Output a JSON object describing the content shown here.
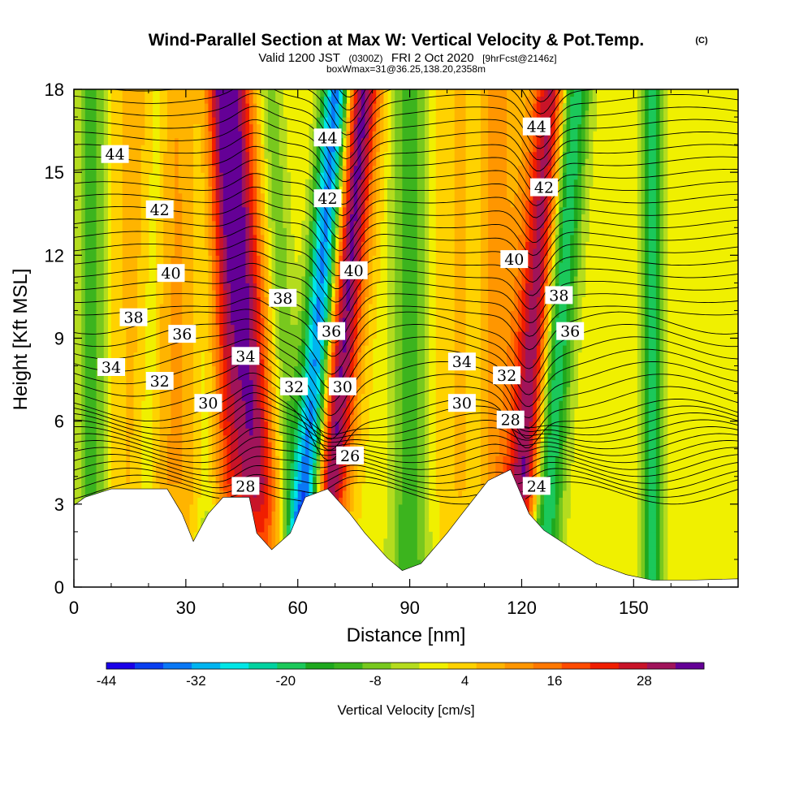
{
  "title": "Wind-Parallel Section at Max W: Vertical Velocity & Pot.Temp.",
  "copyright": "(C)",
  "subtitle": {
    "valid_prefix": "Valid 1200 JST",
    "utc": "(0300Z)",
    "date": "FRI 2 Oct 2020",
    "forecast": "[9hrFcst@2146z]"
  },
  "subtitle2": "boxWmax=31@36.25,138.20,2358m",
  "colors": {
    "scale": [
      "#1a00e8",
      "#0a3ff0",
      "#0a78f5",
      "#00b4f0",
      "#00e6e6",
      "#00d2a0",
      "#1bc85a",
      "#1ea81e",
      "#3cb41e",
      "#78c81e",
      "#b4dc1e",
      "#f0f000",
      "#ffd200",
      "#ffb400",
      "#ff9600",
      "#ff7800",
      "#ff4b00",
      "#f01e00",
      "#c81428",
      "#a0145a",
      "#640096"
    ],
    "terrain": "#ffffff",
    "contour": "#000000"
  },
  "chart_data": {
    "type": "heatmap",
    "xlabel": "Distance [nm]",
    "ylabel": "Height [Kft MSL]",
    "xlim": [
      0,
      178
    ],
    "ylim": [
      0,
      18
    ],
    "xticks": [
      "0",
      "30",
      "60",
      "90",
      "120",
      "150"
    ],
    "yticks": [
      "0",
      "3",
      "6",
      "9",
      "12",
      "15",
      "18"
    ],
    "colorbar": {
      "label": "Vertical Velocity [cm/s]",
      "range": [
        -44,
        36
      ],
      "ticks": [
        "-44",
        "-32",
        "-20",
        "-8",
        "4",
        "16",
        "28"
      ]
    },
    "terrain_kft": [
      [
        0,
        2.95
      ],
      [
        3,
        3.25
      ],
      [
        10,
        3.55
      ],
      [
        25,
        3.55
      ],
      [
        29,
        2.65
      ],
      [
        32,
        1.65
      ],
      [
        36,
        2.65
      ],
      [
        40,
        3.25
      ],
      [
        47,
        3.25
      ],
      [
        49,
        1.95
      ],
      [
        53,
        1.35
      ],
      [
        58,
        1.95
      ],
      [
        62,
        3.25
      ],
      [
        68,
        3.55
      ],
      [
        74,
        2.65
      ],
      [
        78,
        1.95
      ],
      [
        84,
        1.05
      ],
      [
        88,
        0.6
      ],
      [
        93,
        0.85
      ],
      [
        100,
        1.95
      ],
      [
        104,
        2.65
      ],
      [
        111,
        3.85
      ],
      [
        117,
        4.25
      ],
      [
        122,
        2.65
      ],
      [
        126,
        2.05
      ],
      [
        134,
        1.35
      ],
      [
        140,
        0.85
      ],
      [
        148,
        0.45
      ],
      [
        155,
        0.25
      ],
      [
        165,
        0.25
      ],
      [
        178,
        0.3
      ]
    ],
    "updrafts": [
      {
        "x": 30,
        "slope": 0.0,
        "w": 22,
        "amp": 10
      },
      {
        "x": 48,
        "slope": -0.5,
        "w": 6,
        "amp": 26
      },
      {
        "x": 70,
        "slope": 0.6,
        "w": 5,
        "amp": 35
      },
      {
        "x": 122,
        "slope": 0.5,
        "w": 5,
        "amp": 30
      },
      {
        "x": 112,
        "slope": 0.0,
        "w": 9,
        "amp": 10
      },
      {
        "x": 40,
        "slope": -0.2,
        "w": 5,
        "amp": 12
      },
      {
        "x": 100,
        "slope": 0.0,
        "w": 14,
        "amp": 3
      }
    ],
    "downdrafts": [
      {
        "x": 5,
        "slope": 0.0,
        "w": 4,
        "amp": 14
      },
      {
        "x": 20,
        "slope": 0.2,
        "w": 3,
        "amp": 8
      },
      {
        "x": 36,
        "slope": -0.1,
        "w": 4,
        "amp": 14
      },
      {
        "x": 57,
        "slope": -0.4,
        "w": 4,
        "amp": 12
      },
      {
        "x": 64,
        "slope": 0.55,
        "w": 4,
        "amp": 40
      },
      {
        "x": 128,
        "slope": 0.5,
        "w": 4,
        "amp": 26
      },
      {
        "x": 90,
        "slope": 0.0,
        "w": 5,
        "amp": 14
      },
      {
        "x": 155,
        "slope": 0.0,
        "w": 2.5,
        "amp": 22
      },
      {
        "x": 108,
        "slope": 0.0,
        "w": 3,
        "amp": 6
      }
    ],
    "isentropes": {
      "units": "C",
      "levels": [
        24,
        26,
        28,
        30,
        32,
        34,
        36,
        38,
        40,
        42,
        44
      ],
      "labeled": [
        {
          "text": "44",
          "x": 11,
          "y": 15.6
        },
        {
          "text": "42",
          "x": 23,
          "y": 13.6
        },
        {
          "text": "40",
          "x": 26,
          "y": 11.3
        },
        {
          "text": "38",
          "x": 16,
          "y": 9.7
        },
        {
          "text": "36",
          "x": 29,
          "y": 9.1
        },
        {
          "text": "34",
          "x": 10,
          "y": 7.9
        },
        {
          "text": "32",
          "x": 23,
          "y": 7.4
        },
        {
          "text": "30",
          "x": 36,
          "y": 6.6
        },
        {
          "text": "34",
          "x": 46,
          "y": 8.3
        },
        {
          "text": "38",
          "x": 56,
          "y": 10.4
        },
        {
          "text": "32",
          "x": 59,
          "y": 7.2
        },
        {
          "text": "28",
          "x": 46,
          "y": 3.6
        },
        {
          "text": "44",
          "x": 68,
          "y": 16.2
        },
        {
          "text": "42",
          "x": 68,
          "y": 14.0
        },
        {
          "text": "40",
          "x": 75,
          "y": 11.4
        },
        {
          "text": "36",
          "x": 69,
          "y": 9.2
        },
        {
          "text": "30",
          "x": 72,
          "y": 7.2
        },
        {
          "text": "26",
          "x": 74,
          "y": 4.7
        },
        {
          "text": "34",
          "x": 104,
          "y": 8.1
        },
        {
          "text": "30",
          "x": 104,
          "y": 6.6
        },
        {
          "text": "32",
          "x": 116,
          "y": 7.6
        },
        {
          "text": "28",
          "x": 117,
          "y": 6.0
        },
        {
          "text": "40",
          "x": 118,
          "y": 11.8
        },
        {
          "text": "44",
          "x": 124,
          "y": 16.6
        },
        {
          "text": "42",
          "x": 126,
          "y": 14.4
        },
        {
          "text": "38",
          "x": 130,
          "y": 10.5
        },
        {
          "text": "36",
          "x": 133,
          "y": 9.2
        },
        {
          "text": "24",
          "x": 124,
          "y": 3.6
        }
      ]
    }
  }
}
